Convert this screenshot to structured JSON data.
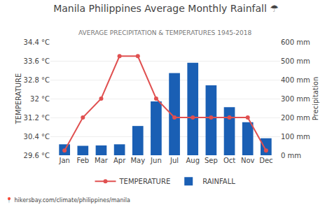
{
  "chart_data": {
    "type": "combo",
    "title": "Manila Philippines Average Monthly Rainfall ☂",
    "subtitle": "AVERAGE PRECIPITATION & TEMPERATURES 1945-2018",
    "footer": "📍 hikersbay.com/climate/philippines/manila",
    "ylabel": "TEMPERATURE",
    "y2label": "Precipitation",
    "categories": [
      "Jan",
      "Feb",
      "Mar",
      "Apr",
      "May",
      "Jun",
      "Jul",
      "Aug",
      "Sep",
      "Oct",
      "Nov",
      "Dec"
    ],
    "series": [
      {
        "name": "TEMPERATURE",
        "type": "line",
        "color": "#e05050",
        "marker": "circle",
        "values": [
          29.8,
          31.2,
          32.0,
          33.8,
          33.8,
          32.0,
          31.2,
          31.2,
          31.2,
          31.2,
          31.2,
          29.8
        ]
      },
      {
        "name": "RAINFALL",
        "type": "bar",
        "color": "#1a5fb4",
        "axis": "y2",
        "values": [
          58,
          50,
          52,
          58,
          155,
          285,
          435,
          490,
          370,
          255,
          175,
          90
        ]
      }
    ],
    "ylim": [
      29.6,
      34.4
    ],
    "yticks": [
      {
        "value": 29.6,
        "label": "29.6 °C"
      },
      {
        "value": 30.4,
        "label": "30.4 °C"
      },
      {
        "value": 31.2,
        "label": "31.2 °C"
      },
      {
        "value": 32.0,
        "label": "32 °C"
      },
      {
        "value": 32.8,
        "label": "32.8 °C"
      },
      {
        "value": 33.6,
        "label": "33.6 °C"
      },
      {
        "value": 34.4,
        "label": "34.4 °C"
      }
    ],
    "y2lim": [
      0,
      600
    ],
    "y2ticks": [
      {
        "value": 0,
        "label": "0 mm"
      },
      {
        "value": 100,
        "label": "100 mm"
      },
      {
        "value": 200,
        "label": "200 mm"
      },
      {
        "value": 300,
        "label": "300 mm"
      },
      {
        "value": 400,
        "label": "400 mm"
      },
      {
        "value": 500,
        "label": "500 mm"
      },
      {
        "value": 600,
        "label": "600 mm"
      }
    ],
    "grid": true,
    "legend": "bottom"
  }
}
